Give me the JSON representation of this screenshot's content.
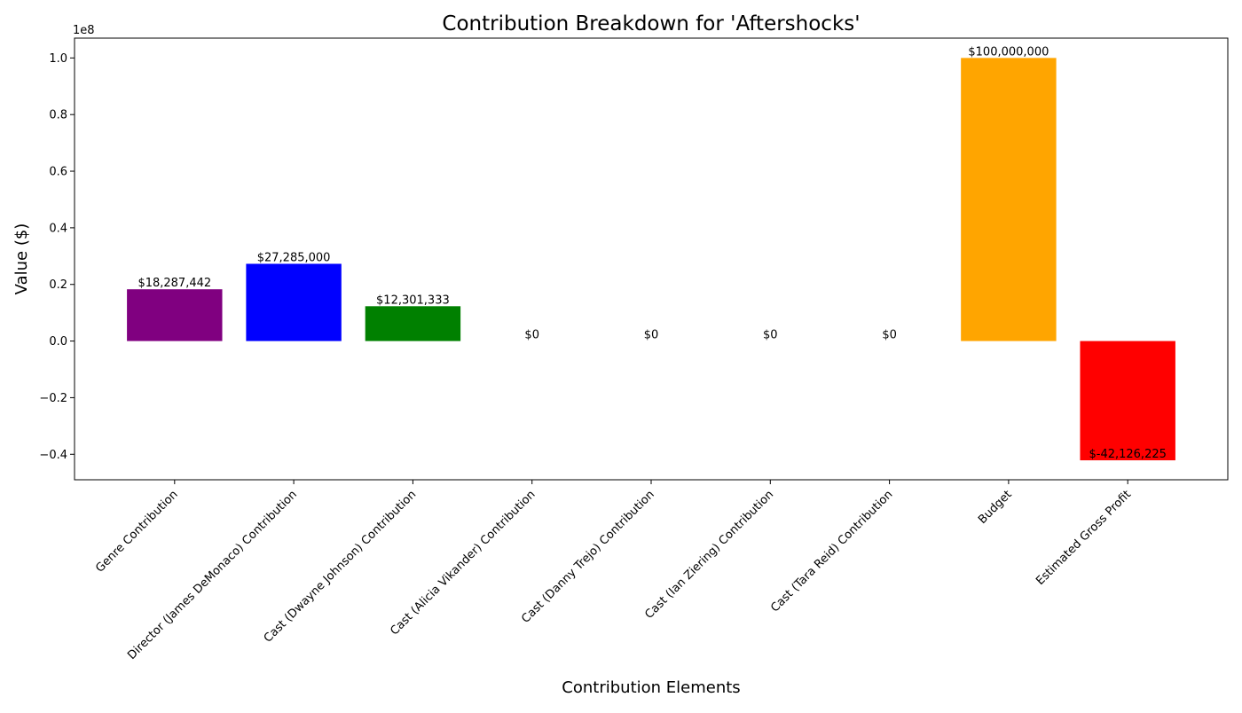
{
  "chart_data": {
    "type": "bar",
    "title": "Contribution Breakdown for 'Aftershocks'",
    "xlabel": "Contribution Elements",
    "ylabel": "Value ($)",
    "offset_label": "1e8",
    "ylim": [
      -49000000,
      107000000
    ],
    "yticks": [
      {
        "value": 100000000,
        "label": "1.0"
      },
      {
        "value": 80000000,
        "label": "0.8"
      },
      {
        "value": 60000000,
        "label": "0.6"
      },
      {
        "value": 40000000,
        "label": "0.4"
      },
      {
        "value": 20000000,
        "label": "0.2"
      },
      {
        "value": 0,
        "label": "0.0"
      },
      {
        "value": -20000000,
        "label": "−0.2"
      },
      {
        "value": -40000000,
        "label": "−0.4"
      }
    ],
    "categories": [
      "Genre Contribution",
      "Director (James DeMonaco) Contribution",
      "Cast (Dwayne Johnson) Contribution",
      "Cast (Alicia Vikander) Contribution",
      "Cast (Danny Trejo) Contribution",
      "Cast (Ian Ziering) Contribution",
      "Cast (Tara Reid) Contribution",
      "Budget",
      "Estimated Gross Profit"
    ],
    "values": [
      18287442,
      27285000,
      12301333,
      0,
      0,
      0,
      0,
      100000000,
      -42126225
    ],
    "value_labels": [
      "$18,287,442",
      "$27,285,000",
      "$12,301,333",
      "$0",
      "$0",
      "$0",
      "$0",
      "$100,000,000",
      "$-42,126,225"
    ],
    "colors": [
      "#800080",
      "#0000ff",
      "#008000",
      "#ffffff",
      "#ffffff",
      "#ffffff",
      "#ffffff",
      "#ffa500",
      "#ff0000"
    ],
    "grid": false,
    "legend": "none"
  }
}
